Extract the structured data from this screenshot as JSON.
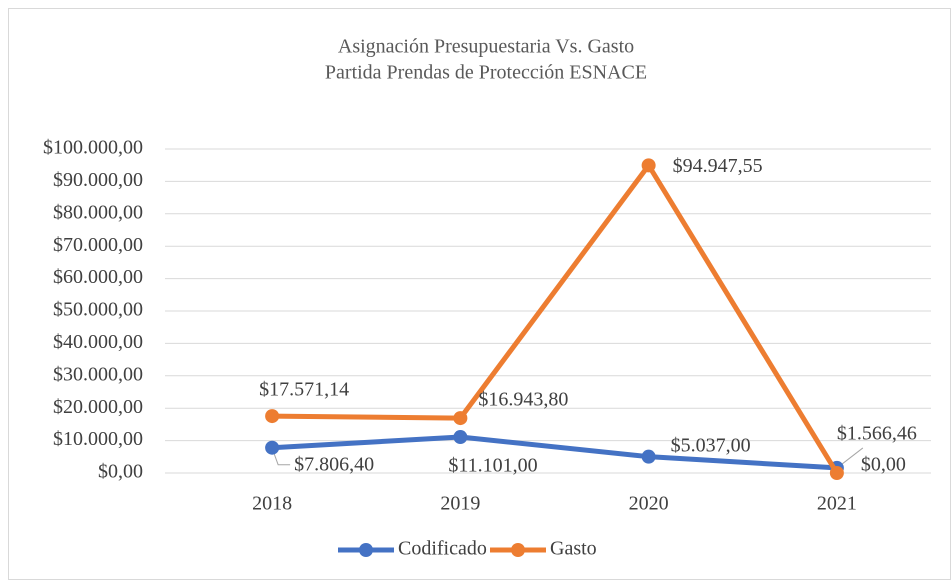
{
  "chart_data": {
    "type": "line",
    "title": "Asignación Presupuestaria Vs. Gasto",
    "subtitle": "Partida Prendas de Protección ESNACE",
    "categories": [
      "2018",
      "2019",
      "2020",
      "2021"
    ],
    "series": [
      {
        "name": "Codificado",
        "color": "#4472c4",
        "values": [
          7806.4,
          11101.0,
          5037.0,
          1566.46
        ],
        "value_labels": [
          "$7.806,40",
          "$11.101,00",
          "$5.037,00",
          "$1.566,46"
        ]
      },
      {
        "name": "Gasto",
        "color": "#ed7d31",
        "values": [
          17571.14,
          16943.8,
          94947.55,
          0.0
        ],
        "value_labels": [
          "$17.571,14",
          "$16.943,80",
          "$94.947,55",
          "$0,00"
        ]
      }
    ],
    "ylim": [
      0,
      100000
    ],
    "yticks": [
      {
        "value": 0,
        "label": "$0,00"
      },
      {
        "value": 10000,
        "label": "$10.000,00"
      },
      {
        "value": 20000,
        "label": "$20.000,00"
      },
      {
        "value": 30000,
        "label": "$30.000,00"
      },
      {
        "value": 40000,
        "label": "$40.000,00"
      },
      {
        "value": 50000,
        "label": "$50.000,00"
      },
      {
        "value": 60000,
        "label": "$60.000,00"
      },
      {
        "value": 70000,
        "label": "$70.000,00"
      },
      {
        "value": 80000,
        "label": "$80.000,00"
      },
      {
        "value": 90000,
        "label": "$90.000,00"
      },
      {
        "value": 100000,
        "label": "$100.000,00"
      }
    ],
    "grid": true,
    "legend": "bottom"
  }
}
